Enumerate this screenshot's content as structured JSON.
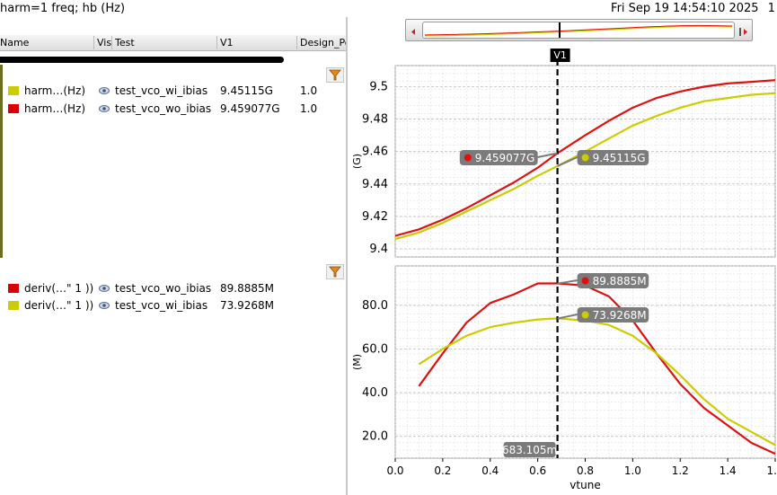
{
  "title": "harm=1 freq; hb (Hz)",
  "datetime": "Fri Sep 19 14:54:10 2025",
  "edge_text": "1",
  "table": {
    "columns": [
      "Name",
      "Vis",
      "Test",
      "V1",
      "Design_Point"
    ]
  },
  "group1": [
    {
      "name": "harm…(Hz)",
      "test": "test_vco_wi_ibias",
      "v1": "9.45115G",
      "design_point": "1.0",
      "color": "#cccc00"
    },
    {
      "name": "harm…(Hz)",
      "test": "test_vco_wo_ibias",
      "v1": "9.459077G",
      "design_point": "1.0",
      "color": "#dd0000"
    }
  ],
  "group2": [
    {
      "name": "deriv(…\" 1 ))",
      "test": "test_vco_wo_ibias",
      "v1": "89.8885M",
      "color": "#dd0000"
    },
    {
      "name": "deriv(…\" 1 ))",
      "test": "test_vco_wi_ibias",
      "v1": "73.9268M",
      "color": "#cccc00"
    }
  ],
  "cursor": {
    "label": "V1",
    "x_value": 0.683105,
    "x_text": "683.105m"
  },
  "chart_data": [
    {
      "type": "line",
      "xlabel": "vtune",
      "ylabel": "(G)",
      "xlim": [
        0,
        1.6
      ],
      "ylim": [
        9.395,
        9.513
      ],
      "yticks": [
        "9.4",
        "9.42",
        "9.44",
        "9.46",
        "9.48",
        "9.5"
      ],
      "grid": true,
      "series": [
        {
          "color": "#dd1111",
          "x": [
            0,
            0.1,
            0.2,
            0.3,
            0.4,
            0.5,
            0.6,
            0.683,
            0.8,
            0.9,
            1.0,
            1.1,
            1.2,
            1.3,
            1.4,
            1.5,
            1.6
          ],
          "y": [
            9.408,
            9.412,
            9.418,
            9.425,
            9.433,
            9.441,
            9.45,
            9.459,
            9.47,
            9.479,
            9.487,
            9.493,
            9.497,
            9.5,
            9.502,
            9.503,
            9.504
          ]
        },
        {
          "color": "#cccc00",
          "x": [
            0,
            0.1,
            0.2,
            0.3,
            0.4,
            0.5,
            0.6,
            0.683,
            0.8,
            0.9,
            1.0,
            1.1,
            1.2,
            1.3,
            1.4,
            1.5,
            1.6
          ],
          "y": [
            9.406,
            9.41,
            9.416,
            9.423,
            9.43,
            9.437,
            9.445,
            9.451,
            9.46,
            9.468,
            9.476,
            9.482,
            9.487,
            9.491,
            9.493,
            9.495,
            9.496
          ]
        }
      ],
      "markers": [
        {
          "label": "9.459077G",
          "color": "#dd1111"
        },
        {
          "label": "9.45115G",
          "color": "#cccc00"
        }
      ]
    },
    {
      "type": "line",
      "xlabel": "vtune",
      "ylabel": "(M)",
      "xlim": [
        0,
        1.6
      ],
      "ylim": [
        10,
        98
      ],
      "xticks": [
        "0.0",
        "0.2",
        "0.4",
        "0.6",
        "0.8",
        "1.0",
        "1.2",
        "1.4",
        "1.6"
      ],
      "yticks": [
        "20.0",
        "40.0",
        "60.0",
        "80.0"
      ],
      "grid": true,
      "series": [
        {
          "color": "#dd1111",
          "x": [
            0.1,
            0.2,
            0.3,
            0.4,
            0.5,
            0.6,
            0.683,
            0.8,
            0.9,
            1.0,
            1.1,
            1.2,
            1.3,
            1.4,
            1.5,
            1.6
          ],
          "y": [
            43,
            58,
            72,
            81,
            85,
            90,
            90,
            89,
            84,
            73,
            58,
            44,
            33,
            25,
            17,
            12
          ]
        },
        {
          "color": "#cccc00",
          "x": [
            0.1,
            0.2,
            0.3,
            0.4,
            0.5,
            0.6,
            0.683,
            0.8,
            0.9,
            1.0,
            1.1,
            1.2,
            1.3,
            1.4,
            1.5,
            1.6
          ],
          "y": [
            53,
            60,
            66,
            70,
            72,
            73.5,
            74,
            73,
            71,
            66,
            58,
            48,
            37,
            28,
            22,
            16
          ]
        }
      ],
      "markers": [
        {
          "label": "89.8885M",
          "color": "#dd1111"
        },
        {
          "label": "73.9268M",
          "color": "#cccc00"
        }
      ]
    }
  ]
}
